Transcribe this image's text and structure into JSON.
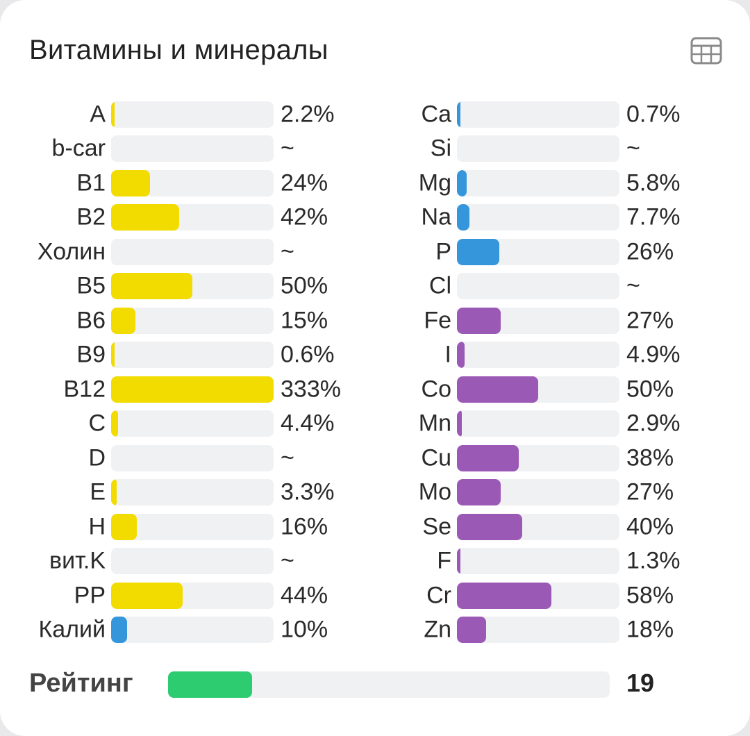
{
  "card": {
    "title": "Витамины и минералы",
    "table_icon": "table-grid-icon"
  },
  "colors": {
    "vitamin": "#f2dc00",
    "potassium": "#3596db",
    "mineral_blue": "#3596db",
    "mineral_purple": "#9b59b6",
    "rating": "#2ecc71",
    "track": "#f0f1f3"
  },
  "vitamins": [
    {
      "label": "A",
      "value": "2.2%",
      "pct": 2.2,
      "color": "vitamin"
    },
    {
      "label": "b-car",
      "value": "~",
      "pct": 0,
      "color": "vitamin"
    },
    {
      "label": "B1",
      "value": "24%",
      "pct": 24,
      "color": "vitamin"
    },
    {
      "label": "B2",
      "value": "42%",
      "pct": 42,
      "color": "vitamin"
    },
    {
      "label": "Холин",
      "value": "~",
      "pct": 0,
      "color": "vitamin"
    },
    {
      "label": "B5",
      "value": "50%",
      "pct": 50,
      "color": "vitamin"
    },
    {
      "label": "B6",
      "value": "15%",
      "pct": 15,
      "color": "vitamin"
    },
    {
      "label": "B9",
      "value": "0.6%",
      "pct": 0.6,
      "color": "vitamin"
    },
    {
      "label": "B12",
      "value": "333%",
      "pct": 333,
      "color": "vitamin"
    },
    {
      "label": "C",
      "value": "4.4%",
      "pct": 4.4,
      "color": "vitamin"
    },
    {
      "label": "D",
      "value": "~",
      "pct": 0,
      "color": "vitamin"
    },
    {
      "label": "E",
      "value": "3.3%",
      "pct": 3.3,
      "color": "vitamin"
    },
    {
      "label": "H",
      "value": "16%",
      "pct": 16,
      "color": "vitamin"
    },
    {
      "label": "вит.K",
      "value": "~",
      "pct": 0,
      "color": "vitamin"
    },
    {
      "label": "PP",
      "value": "44%",
      "pct": 44,
      "color": "vitamin"
    },
    {
      "label": "Калий",
      "value": "10%",
      "pct": 10,
      "color": "potassium"
    }
  ],
  "minerals": [
    {
      "label": "Ca",
      "value": "0.7%",
      "pct": 0.7,
      "color": "mineral_blue"
    },
    {
      "label": "Si",
      "value": "~",
      "pct": 0,
      "color": "mineral_blue"
    },
    {
      "label": "Mg",
      "value": "5.8%",
      "pct": 5.8,
      "color": "mineral_blue"
    },
    {
      "label": "Na",
      "value": "7.7%",
      "pct": 7.7,
      "color": "mineral_blue"
    },
    {
      "label": "P",
      "value": "26%",
      "pct": 26,
      "color": "mineral_blue"
    },
    {
      "label": "Cl",
      "value": "~",
      "pct": 0,
      "color": "mineral_blue"
    },
    {
      "label": "Fe",
      "value": "27%",
      "pct": 27,
      "color": "mineral_purple"
    },
    {
      "label": "I",
      "value": "4.9%",
      "pct": 4.9,
      "color": "mineral_purple"
    },
    {
      "label": "Co",
      "value": "50%",
      "pct": 50,
      "color": "mineral_purple"
    },
    {
      "label": "Mn",
      "value": "2.9%",
      "pct": 2.9,
      "color": "mineral_purple"
    },
    {
      "label": "Cu",
      "value": "38%",
      "pct": 38,
      "color": "mineral_purple"
    },
    {
      "label": "Mo",
      "value": "27%",
      "pct": 27,
      "color": "mineral_purple"
    },
    {
      "label": "Se",
      "value": "40%",
      "pct": 40,
      "color": "mineral_purple"
    },
    {
      "label": "F",
      "value": "1.3%",
      "pct": 1.3,
      "color": "mineral_purple"
    },
    {
      "label": "Cr",
      "value": "58%",
      "pct": 58,
      "color": "mineral_purple"
    },
    {
      "label": "Zn",
      "value": "18%",
      "pct": 18,
      "color": "mineral_purple"
    }
  ],
  "rating": {
    "label": "Рейтинг",
    "value": "19",
    "fraction": 0.19
  }
}
